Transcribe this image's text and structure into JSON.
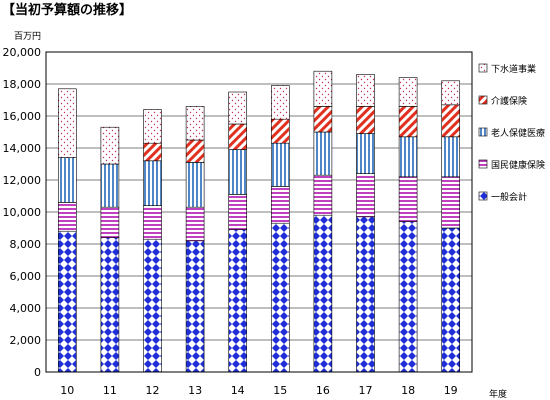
{
  "chart_data": {
    "type": "bar",
    "stacked": true,
    "title": "【当初予算額の推移】",
    "ylabel": "百万円",
    "xlabel": "年度",
    "ylim": [
      0,
      20000
    ],
    "ytick_step": 2000,
    "ytick_labels": [
      "0",
      "2,000",
      "4,000",
      "6,000",
      "8,000",
      "10,000",
      "12,000",
      "14,000",
      "16,000",
      "18,000",
      "20,000"
    ],
    "grid": true,
    "legend_position": "right",
    "categories": [
      "10",
      "11",
      "12",
      "13",
      "14",
      "15",
      "16",
      "17",
      "18",
      "19"
    ],
    "series": [
      {
        "name": "一般会計",
        "pattern": "diamonds",
        "color": "#1f2fd8",
        "values": [
          8800,
          8400,
          8300,
          8200,
          8900,
          9300,
          9800,
          9700,
          9400,
          9000
        ]
      },
      {
        "name": "国民健康保険",
        "pattern": "hlines",
        "color": "#c040c0",
        "values": [
          1800,
          1900,
          2100,
          2100,
          2200,
          2300,
          2500,
          2700,
          2800,
          3200
        ]
      },
      {
        "name": "老人保健医療",
        "pattern": "vlines",
        "color": "#4f86c8",
        "values": [
          2800,
          2700,
          2800,
          2800,
          2800,
          2700,
          2700,
          2500,
          2500,
          2500
        ]
      },
      {
        "name": "介護保険",
        "pattern": "diag",
        "color": "#e03020",
        "values": [
          0,
          0,
          1100,
          1400,
          1600,
          1500,
          1600,
          1700,
          1900,
          2000
        ]
      },
      {
        "name": "下水道事業",
        "pattern": "dots",
        "color": "#c03060",
        "values": [
          4300,
          2300,
          2100,
          2100,
          2000,
          2100,
          2200,
          2000,
          1800,
          1500
        ]
      }
    ]
  }
}
